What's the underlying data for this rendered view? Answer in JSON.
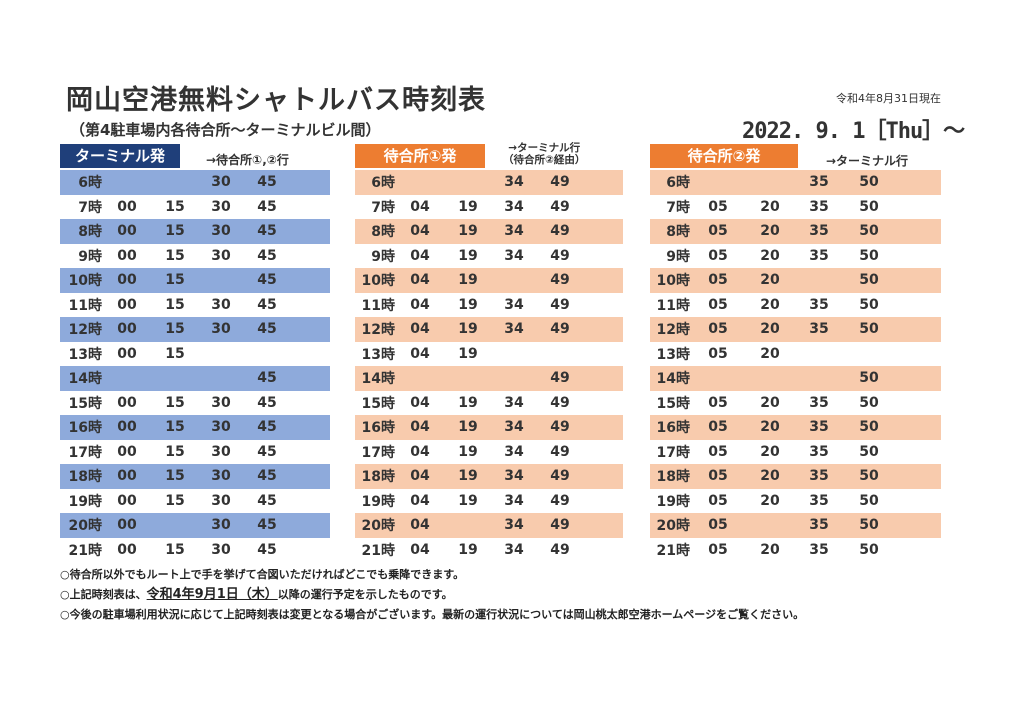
{
  "header": {
    "title": "岡山空港無料シャトルバス時刻表",
    "as_of": "令和4年8月31日現在",
    "subtitle": "（第4駐車場内各待合所～ターミナルビル間）",
    "effective_date": "2022. 9. 1［Thu］～"
  },
  "colors": {
    "terminal_label": "#1f3f7a",
    "terminal_row": "#8eaadb",
    "stop_label": "#ed7d31",
    "stop_row": "#f8cbad"
  },
  "sections": [
    {
      "label": "ターミナル発",
      "dest": "→待合所①,②行",
      "dest_line2": "",
      "rows": [
        {
          "hour": "6時",
          "m": [
            "",
            "",
            "30",
            "45"
          ]
        },
        {
          "hour": "7時",
          "m": [
            "00",
            "15",
            "30",
            "45"
          ]
        },
        {
          "hour": "8時",
          "m": [
            "00",
            "15",
            "30",
            "45"
          ]
        },
        {
          "hour": "9時",
          "m": [
            "00",
            "15",
            "30",
            "45"
          ]
        },
        {
          "hour": "10時",
          "m": [
            "00",
            "15",
            "",
            "45"
          ]
        },
        {
          "hour": "11時",
          "m": [
            "00",
            "15",
            "30",
            "45"
          ]
        },
        {
          "hour": "12時",
          "m": [
            "00",
            "15",
            "30",
            "45"
          ]
        },
        {
          "hour": "13時",
          "m": [
            "00",
            "15",
            "",
            ""
          ]
        },
        {
          "hour": "14時",
          "m": [
            "",
            "",
            "",
            "45"
          ]
        },
        {
          "hour": "15時",
          "m": [
            "00",
            "15",
            "30",
            "45"
          ]
        },
        {
          "hour": "16時",
          "m": [
            "00",
            "15",
            "30",
            "45"
          ]
        },
        {
          "hour": "17時",
          "m": [
            "00",
            "15",
            "30",
            "45"
          ]
        },
        {
          "hour": "18時",
          "m": [
            "00",
            "15",
            "30",
            "45"
          ]
        },
        {
          "hour": "19時",
          "m": [
            "00",
            "15",
            "30",
            "45"
          ]
        },
        {
          "hour": "20時",
          "m": [
            "00",
            "",
            "30",
            "45"
          ]
        },
        {
          "hour": "21時",
          "m": [
            "00",
            "15",
            "30",
            "45"
          ]
        }
      ]
    },
    {
      "label": "待合所①発",
      "dest": "→ターミナル行",
      "dest_line2": "（待合所②経由）",
      "rows": [
        {
          "hour": "6時",
          "m": [
            "",
            "",
            "34",
            "49"
          ]
        },
        {
          "hour": "7時",
          "m": [
            "04",
            "19",
            "34",
            "49"
          ]
        },
        {
          "hour": "8時",
          "m": [
            "04",
            "19",
            "34",
            "49"
          ]
        },
        {
          "hour": "9時",
          "m": [
            "04",
            "19",
            "34",
            "49"
          ]
        },
        {
          "hour": "10時",
          "m": [
            "04",
            "19",
            "",
            "49"
          ]
        },
        {
          "hour": "11時",
          "m": [
            "04",
            "19",
            "34",
            "49"
          ]
        },
        {
          "hour": "12時",
          "m": [
            "04",
            "19",
            "34",
            "49"
          ]
        },
        {
          "hour": "13時",
          "m": [
            "04",
            "19",
            "",
            ""
          ]
        },
        {
          "hour": "14時",
          "m": [
            "",
            "",
            "",
            "49"
          ]
        },
        {
          "hour": "15時",
          "m": [
            "04",
            "19",
            "34",
            "49"
          ]
        },
        {
          "hour": "16時",
          "m": [
            "04",
            "19",
            "34",
            "49"
          ]
        },
        {
          "hour": "17時",
          "m": [
            "04",
            "19",
            "34",
            "49"
          ]
        },
        {
          "hour": "18時",
          "m": [
            "04",
            "19",
            "34",
            "49"
          ]
        },
        {
          "hour": "19時",
          "m": [
            "04",
            "19",
            "34",
            "49"
          ]
        },
        {
          "hour": "20時",
          "m": [
            "04",
            "",
            "34",
            "49"
          ]
        },
        {
          "hour": "21時",
          "m": [
            "04",
            "19",
            "34",
            "49"
          ]
        }
      ]
    },
    {
      "label": "待合所②発",
      "dest": "→ターミナル行",
      "dest_line2": "",
      "rows": [
        {
          "hour": "6時",
          "m": [
            "",
            "",
            "35",
            "50"
          ]
        },
        {
          "hour": "7時",
          "m": [
            "05",
            "20",
            "35",
            "50"
          ]
        },
        {
          "hour": "8時",
          "m": [
            "05",
            "20",
            "35",
            "50"
          ]
        },
        {
          "hour": "9時",
          "m": [
            "05",
            "20",
            "35",
            "50"
          ]
        },
        {
          "hour": "10時",
          "m": [
            "05",
            "20",
            "",
            "50"
          ]
        },
        {
          "hour": "11時",
          "m": [
            "05",
            "20",
            "35",
            "50"
          ]
        },
        {
          "hour": "12時",
          "m": [
            "05",
            "20",
            "35",
            "50"
          ]
        },
        {
          "hour": "13時",
          "m": [
            "05",
            "20",
            "",
            ""
          ]
        },
        {
          "hour": "14時",
          "m": [
            "",
            "",
            "",
            "50"
          ]
        },
        {
          "hour": "15時",
          "m": [
            "05",
            "20",
            "35",
            "50"
          ]
        },
        {
          "hour": "16時",
          "m": [
            "05",
            "20",
            "35",
            "50"
          ]
        },
        {
          "hour": "17時",
          "m": [
            "05",
            "20",
            "35",
            "50"
          ]
        },
        {
          "hour": "18時",
          "m": [
            "05",
            "20",
            "35",
            "50"
          ]
        },
        {
          "hour": "19時",
          "m": [
            "05",
            "20",
            "35",
            "50"
          ]
        },
        {
          "hour": "20時",
          "m": [
            "05",
            "",
            "35",
            "50"
          ]
        },
        {
          "hour": "21時",
          "m": [
            "05",
            "20",
            "35",
            "50"
          ]
        }
      ]
    }
  ],
  "notes": {
    "n1": "○待合所以外でもルート上で手を挙げて合図いただければどこでも乗降できます。",
    "n2_pre": "○上記時刻表は、",
    "n2_hl": "令和4年9月1日（木）",
    "n2_post": "以降の運行予定を示したものです。",
    "n3": "○今後の駐車場利用状況に応じて上記時刻表は変更となる場合がございます。最新の運行状況については岡山桃太郎空港ホームページをご覧ください。"
  }
}
